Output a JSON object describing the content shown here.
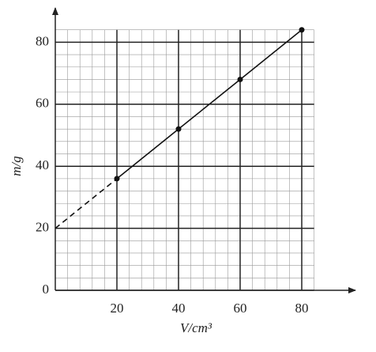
{
  "chart_data": {
    "type": "line",
    "x_label": "V/cm³",
    "y_label": "m/g",
    "x": [
      0,
      20,
      40,
      60,
      80
    ],
    "series": [
      {
        "color": "#111111",
        "style": "solid",
        "markers": true,
        "values": [
          null,
          36,
          52,
          68,
          84
        ]
      },
      {
        "color": "#111111",
        "style": "dashed",
        "markers": false,
        "values": [
          20,
          36,
          null,
          null,
          null
        ]
      }
    ],
    "xlim": [
      0,
      84
    ],
    "ylim": [
      0,
      84
    ],
    "xticks": [
      20,
      40,
      60,
      80
    ],
    "yticks": [
      0,
      20,
      40,
      60,
      80
    ],
    "grid": true
  }
}
